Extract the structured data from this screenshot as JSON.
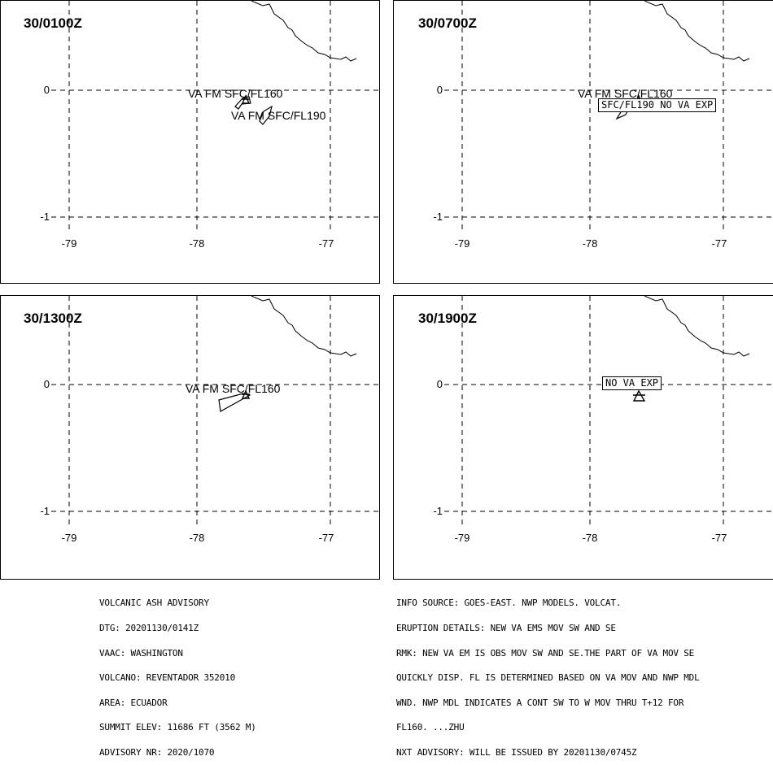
{
  "panels": [
    {
      "time": "30/0100Z",
      "labels": [
        "VA FM SFC/FL160",
        "VA FM SFC/FL190"
      ],
      "boxed": []
    },
    {
      "time": "30/0700Z",
      "labels": [
        "VA FM SFC/FL160"
      ],
      "boxed": [
        "SFC/FL190 NO VA EXP"
      ]
    },
    {
      "time": "30/1300Z",
      "labels": [
        "VA FM SFC/FL160"
      ],
      "boxed": []
    },
    {
      "time": "30/1900Z",
      "labels": [],
      "boxed": [
        "NO VA EXP"
      ]
    }
  ],
  "axes": {
    "lat_ticks": [
      "0",
      "-1"
    ],
    "lon_ticks": [
      "-79",
      "-78",
      "-77"
    ]
  },
  "advisory_left": [
    "VOLCANIC ASH ADVISORY",
    "DTG: 20201130/0141Z",
    "VAAC: WASHINGTON",
    "VOLCANO: REVENTADOR 352010",
    "AREA: ECUADOR",
    "SUMMIT ELEV: 11686 FT (3562 M)",
    "ADVISORY NR: 2020/1070"
  ],
  "advisory_right": [
    "INFO SOURCE: GOES-EAST. NWP MODELS. VOLCAT.",
    "ERUPTION DETAILS: NEW VA EMS MOV SW AND SE",
    "RMK: NEW VA EM IS OBS MOV SW AND SE.THE PART OF VA MOV SE",
    "QUICKLY DISP. FL IS DETERMINED BASED ON VA MOV AND NWP MDL",
    "WND. NWP MDL INDICATES A CONT SW TO W MOV THRU T+12 FOR",
    "FL160. ...ZHU",
    "NXT ADVISORY: WILL BE ISSUED BY 20201130/0745Z"
  ]
}
